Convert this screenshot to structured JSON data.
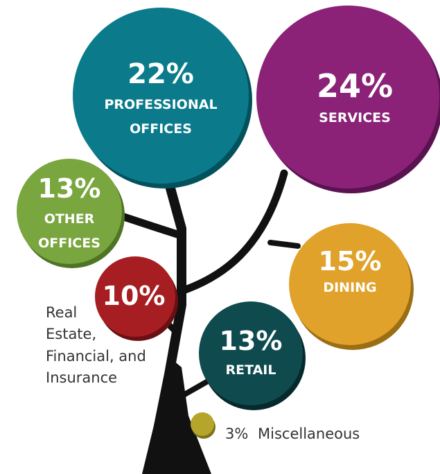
{
  "nodes": [
    {
      "percent": "22%",
      "label": [
        "PROFESSIONAL",
        "OFFICES"
      ]
    },
    {
      "percent": "24%",
      "label": [
        "SERVICES"
      ]
    },
    {
      "percent": "13%",
      "label": [
        "OTHER",
        "OFFICES"
      ]
    },
    {
      "percent": "15%",
      "label": [
        "DINING"
      ]
    },
    {
      "percent": "10%",
      "label": [
        "Real",
        "Estate,",
        "Financial, and",
        "Insurance"
      ]
    },
    {
      "percent": "13%",
      "label": [
        "RETAIL"
      ]
    },
    {
      "percent": "3%",
      "label": [
        "Miscellaneous"
      ]
    }
  ]
}
